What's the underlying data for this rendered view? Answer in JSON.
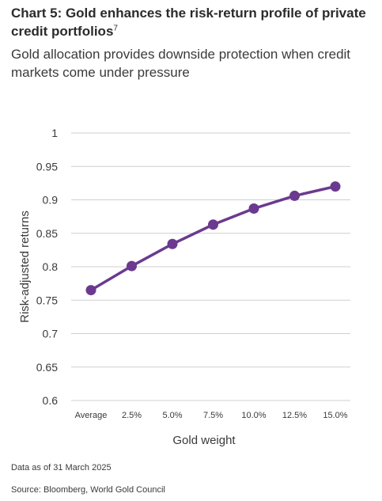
{
  "header": {
    "title": "Chart 5: Gold enhances the risk-return profile of private credit portfolios",
    "title_footnote": "7",
    "subtitle": "Gold allocation provides downside protection when credit markets come under pressure"
  },
  "chart_data": {
    "type": "line",
    "categories": [
      "Average",
      "2.5%",
      "5.0%",
      "7.5%",
      "10.0%",
      "12.5%",
      "15.0%"
    ],
    "series": [
      {
        "values": [
          0.765,
          0.801,
          0.834,
          0.863,
          0.887,
          0.906,
          0.92
        ]
      }
    ],
    "xlabel": "Gold weight",
    "ylabel": "Risk-adjusted returns",
    "ylim": [
      0.6,
      1
    ],
    "yticks": [
      0.6,
      0.65,
      0.7,
      0.75,
      0.8,
      0.85,
      0.9,
      0.95,
      1
    ],
    "ytick_labels": [
      "0.6",
      "0.65",
      "0.7",
      "0.75",
      "0.8",
      "0.85",
      "0.9",
      "0.95",
      "1"
    ],
    "grid": true,
    "legend": "none",
    "colors": {
      "line": "#6b3a8f",
      "grid": "#cfcfcf",
      "text": "#3a3a3a"
    }
  },
  "footer": {
    "data_note": "Data as of 31 March 2025",
    "source": "Source: Bloomberg, World Gold Council"
  }
}
